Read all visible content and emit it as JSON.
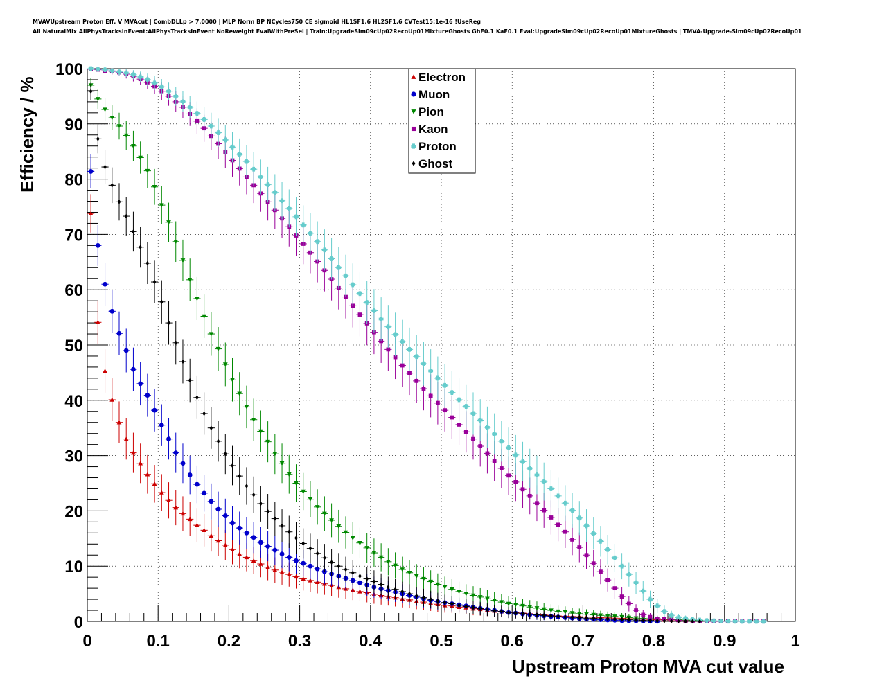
{
  "title_lines": [
    "MVAVUpstream Proton Eff. V MVAcut | CombDLLp > 7.0000 | MLP Norm BP NCycles750 CE sigmoid HL1SF1.6 HL2SF1.6 CVTest15:1e-16 !UseReg",
    "All NaturalMix AllPhysTracksInEvent:AllPhysTracksInEvent NoReweight EvalWithPreSel | Train:UpgradeSim09cUp02RecoUp01MixtureGhosts GhF0.1 KaF0.1 Eval:UpgradeSim09cUp02RecoUp01MixtureGhosts | TMVA-Upgrade-Sim09cUp02RecoUp01"
  ],
  "chart_data": {
    "type": "scatter",
    "xlabel": "Upstream Proton MVA cut value",
    "ylabel": "Efficiency / %",
    "xlim": [
      0,
      1
    ],
    "ylim": [
      0,
      100
    ],
    "x_ticks": [
      "0",
      "0.1",
      "0.2",
      "0.3",
      "0.4",
      "0.5",
      "0.6",
      "0.7",
      "0.8",
      "0.9",
      "1"
    ],
    "y_ticks": [
      "0",
      "10",
      "20",
      "30",
      "40",
      "50",
      "60",
      "70",
      "80",
      "90",
      "100"
    ],
    "grid": true,
    "legend_position": "top-center",
    "x": [
      0.005,
      0.015,
      0.025,
      0.035,
      0.045,
      0.055,
      0.065,
      0.075,
      0.085,
      0.095,
      0.105,
      0.115,
      0.125,
      0.135,
      0.145,
      0.155,
      0.165,
      0.175,
      0.185,
      0.195,
      0.205,
      0.215,
      0.225,
      0.235,
      0.245,
      0.255,
      0.265,
      0.275,
      0.285,
      0.295,
      0.305,
      0.315,
      0.325,
      0.335,
      0.345,
      0.355,
      0.365,
      0.375,
      0.385,
      0.395,
      0.405,
      0.415,
      0.425,
      0.435,
      0.445,
      0.455,
      0.465,
      0.475,
      0.485,
      0.495,
      0.505,
      0.515,
      0.525,
      0.535,
      0.545,
      0.555,
      0.565,
      0.575,
      0.585,
      0.595,
      0.605,
      0.615,
      0.625,
      0.635,
      0.645,
      0.655,
      0.665,
      0.675,
      0.685,
      0.695,
      0.705,
      0.715,
      0.725,
      0.735,
      0.745,
      0.755,
      0.765,
      0.775,
      0.785,
      0.795,
      0.805,
      0.815,
      0.825,
      0.835,
      0.845,
      0.855,
      0.865,
      0.875,
      0.885,
      0.895,
      0.905,
      0.915,
      0.925,
      0.935,
      0.945,
      0.955
    ],
    "series": [
      {
        "name": "Electron",
        "color": "#cc0000",
        "marker": "triangle-up",
        "values": [
          73.8,
          54.1,
          45.3,
          40.1,
          36.0,
          33.0,
          30.5,
          28.6,
          26.6,
          24.9,
          23.3,
          21.9,
          20.6,
          19.5,
          18.5,
          17.4,
          16.5,
          15.5,
          14.6,
          13.8,
          13.0,
          12.2,
          11.6,
          11.0,
          10.4,
          9.8,
          9.3,
          8.9,
          8.5,
          8.1,
          7.7,
          7.4,
          7.1,
          6.8,
          6.5,
          6.2,
          5.9,
          5.7,
          5.4,
          5.2,
          4.9,
          4.7,
          4.5,
          4.3,
          4.1,
          3.9,
          3.7,
          3.5,
          3.3,
          3.1,
          2.9,
          2.8,
          2.6,
          2.5,
          2.3,
          2.2,
          2.1,
          1.9,
          1.8,
          1.7,
          1.6,
          1.5,
          1.4,
          1.3,
          1.2,
          1.1,
          1.0,
          0.95,
          0.9,
          0.85,
          0.8,
          0.75,
          0.7,
          0.65,
          0.6,
          0.55,
          0.5,
          0.45,
          0.4,
          0.35,
          0.3,
          0.28,
          0.25,
          0.22,
          0.2,
          0.18,
          0.15,
          0.12
        ]
      },
      {
        "name": "Muon",
        "color": "#0000cc",
        "marker": "circle",
        "values": [
          81.4,
          68.0,
          61.0,
          56.1,
          52.1,
          49.0,
          45.6,
          43.0,
          40.9,
          38.2,
          35.5,
          33.0,
          30.5,
          28.6,
          26.5,
          24.8,
          23.2,
          21.7,
          20.3,
          19.1,
          17.8,
          16.9,
          16.0,
          15.2,
          14.3,
          13.6,
          12.9,
          12.2,
          11.6,
          11.0,
          10.5,
          10.0,
          9.5,
          9.0,
          8.6,
          8.2,
          7.8,
          7.4,
          7.0,
          6.6,
          6.2,
          5.9,
          5.6,
          5.3,
          5.0,
          4.7,
          4.4,
          4.1,
          3.8,
          3.6,
          3.4,
          3.2,
          3.0,
          2.8,
          2.6,
          2.4,
          2.2,
          2.0,
          1.8,
          1.6,
          1.5,
          1.35,
          1.2,
          1.1,
          1.0,
          0.9,
          0.8,
          0.7,
          0.6,
          0.5,
          0.4,
          0.35,
          0.3,
          0.25,
          0.2,
          0.15,
          0.1,
          0.08,
          0.05,
          0.03,
          0.02
        ]
      },
      {
        "name": "Pion",
        "color": "#008800",
        "marker": "triangle-down",
        "values": [
          97.0,
          94.5,
          92.6,
          91.1,
          89.6,
          87.9,
          86.0,
          83.9,
          81.5,
          78.6,
          75.3,
          72.2,
          68.7,
          65.3,
          61.8,
          58.4,
          55.2,
          52.0,
          49.3,
          46.5,
          43.7,
          41.2,
          38.8,
          36.5,
          34.4,
          32.5,
          30.3,
          28.6,
          26.6,
          25.0,
          23.5,
          22.1,
          20.7,
          19.5,
          18.3,
          17.2,
          16.1,
          15.1,
          14.2,
          13.3,
          12.4,
          11.6,
          10.8,
          10.1,
          9.4,
          8.8,
          8.2,
          7.7,
          7.2,
          6.7,
          6.2,
          5.8,
          5.4,
          5.0,
          4.7,
          4.4,
          4.1,
          3.8,
          3.5,
          3.2,
          3.0,
          2.8,
          2.6,
          2.4,
          2.2,
          2.0,
          1.8,
          1.7,
          1.5,
          1.4,
          1.3,
          1.2,
          1.1,
          1.0,
          0.9,
          0.8,
          0.7,
          0.6,
          0.55,
          0.5,
          0.45,
          0.4,
          0.35,
          0.3,
          0.25,
          0.2,
          0.15,
          0.1,
          0.08,
          0.05
        ]
      },
      {
        "name": "Kaon",
        "color": "#990099",
        "marker": "square",
        "values": [
          99.9,
          99.8,
          99.6,
          99.5,
          99.3,
          99.0,
          98.6,
          98.1,
          97.5,
          96.8,
          95.9,
          95.0,
          94.0,
          93.0,
          91.8,
          90.5,
          89.2,
          87.8,
          86.4,
          84.9,
          83.4,
          81.9,
          80.4,
          78.9,
          77.4,
          75.9,
          74.4,
          72.9,
          71.4,
          69.8,
          68.3,
          66.7,
          65.1,
          63.5,
          61.9,
          60.3,
          58.7,
          57.1,
          55.5,
          53.9,
          52.3,
          50.7,
          49.2,
          47.8,
          46.3,
          44.9,
          43.5,
          42.1,
          40.8,
          39.5,
          38.2,
          36.9,
          35.6,
          34.3,
          33.0,
          31.7,
          30.4,
          29.0,
          27.7,
          26.4,
          25.2,
          23.9,
          22.7,
          21.4,
          20.1,
          18.8,
          17.5,
          16.2,
          14.8,
          13.4,
          12.0,
          10.5,
          9.0,
          7.5,
          6.0,
          4.5,
          3.2,
          2.0,
          1.2,
          0.8,
          0.5,
          0.4,
          0.3,
          0.2,
          0.1,
          0.08,
          0.05,
          0.03,
          0.02,
          0.01,
          0.01,
          0.01,
          0.0,
          0.0,
          0.0,
          0.0
        ]
      },
      {
        "name": "Proton",
        "color": "#66cccc",
        "marker": "cross",
        "values": [
          100.0,
          99.9,
          99.8,
          99.6,
          99.4,
          99.2,
          98.9,
          98.5,
          98.0,
          97.4,
          96.7,
          95.9,
          95.0,
          94.0,
          93.0,
          91.9,
          90.8,
          89.6,
          88.4,
          87.1,
          85.8,
          84.5,
          83.2,
          81.8,
          80.4,
          79.0,
          77.6,
          76.1,
          74.7,
          73.2,
          71.7,
          70.2,
          68.7,
          67.2,
          65.6,
          64.0,
          62.5,
          60.9,
          59.3,
          57.7,
          56.2,
          54.7,
          53.3,
          51.9,
          50.6,
          49.2,
          47.9,
          46.6,
          45.3,
          44.0,
          42.7,
          41.4,
          40.1,
          38.9,
          37.6,
          36.4,
          35.1,
          33.9,
          32.6,
          31.4,
          30.1,
          28.9,
          27.7,
          26.5,
          25.3,
          24.0,
          22.7,
          21.4,
          20.1,
          18.7,
          17.3,
          15.9,
          14.5,
          13.0,
          11.5,
          10.0,
          8.5,
          7.0,
          5.5,
          4.0,
          2.8,
          1.8,
          1.1,
          0.7,
          0.5,
          0.35,
          0.25,
          0.15,
          0.1,
          0.05,
          0.03,
          0.02,
          0.01,
          0.01,
          0.0,
          0.0
        ]
      },
      {
        "name": "Ghost",
        "color": "#000000",
        "marker": "star",
        "values": [
          95.9,
          87.3,
          82.2,
          78.9,
          75.9,
          73.3,
          70.5,
          67.7,
          64.8,
          61.4,
          57.8,
          54.0,
          50.4,
          47.0,
          43.6,
          40.5,
          37.6,
          35.0,
          32.6,
          30.3,
          28.2,
          26.3,
          24.5,
          22.9,
          21.3,
          19.9,
          18.6,
          17.3,
          16.2,
          15.1,
          14.1,
          13.2,
          12.3,
          11.5,
          10.7,
          10.0,
          9.4,
          8.8,
          8.2,
          7.7,
          7.2,
          6.7,
          6.2,
          5.8,
          5.4,
          5.0,
          4.6,
          4.3,
          4.0,
          3.7,
          3.4,
          3.2,
          2.9,
          2.7,
          2.5,
          2.3,
          2.1,
          1.9,
          1.8,
          1.6,
          1.5,
          1.4,
          1.3,
          1.2,
          1.1,
          1.0,
          0.9,
          0.8,
          0.75,
          0.7,
          0.6,
          0.55,
          0.5,
          0.45,
          0.4,
          0.35,
          0.3,
          0.25,
          0.2,
          0.15,
          0.1,
          0.08,
          0.05,
          0.04,
          0.03,
          0.02,
          0.01
        ]
      }
    ]
  }
}
